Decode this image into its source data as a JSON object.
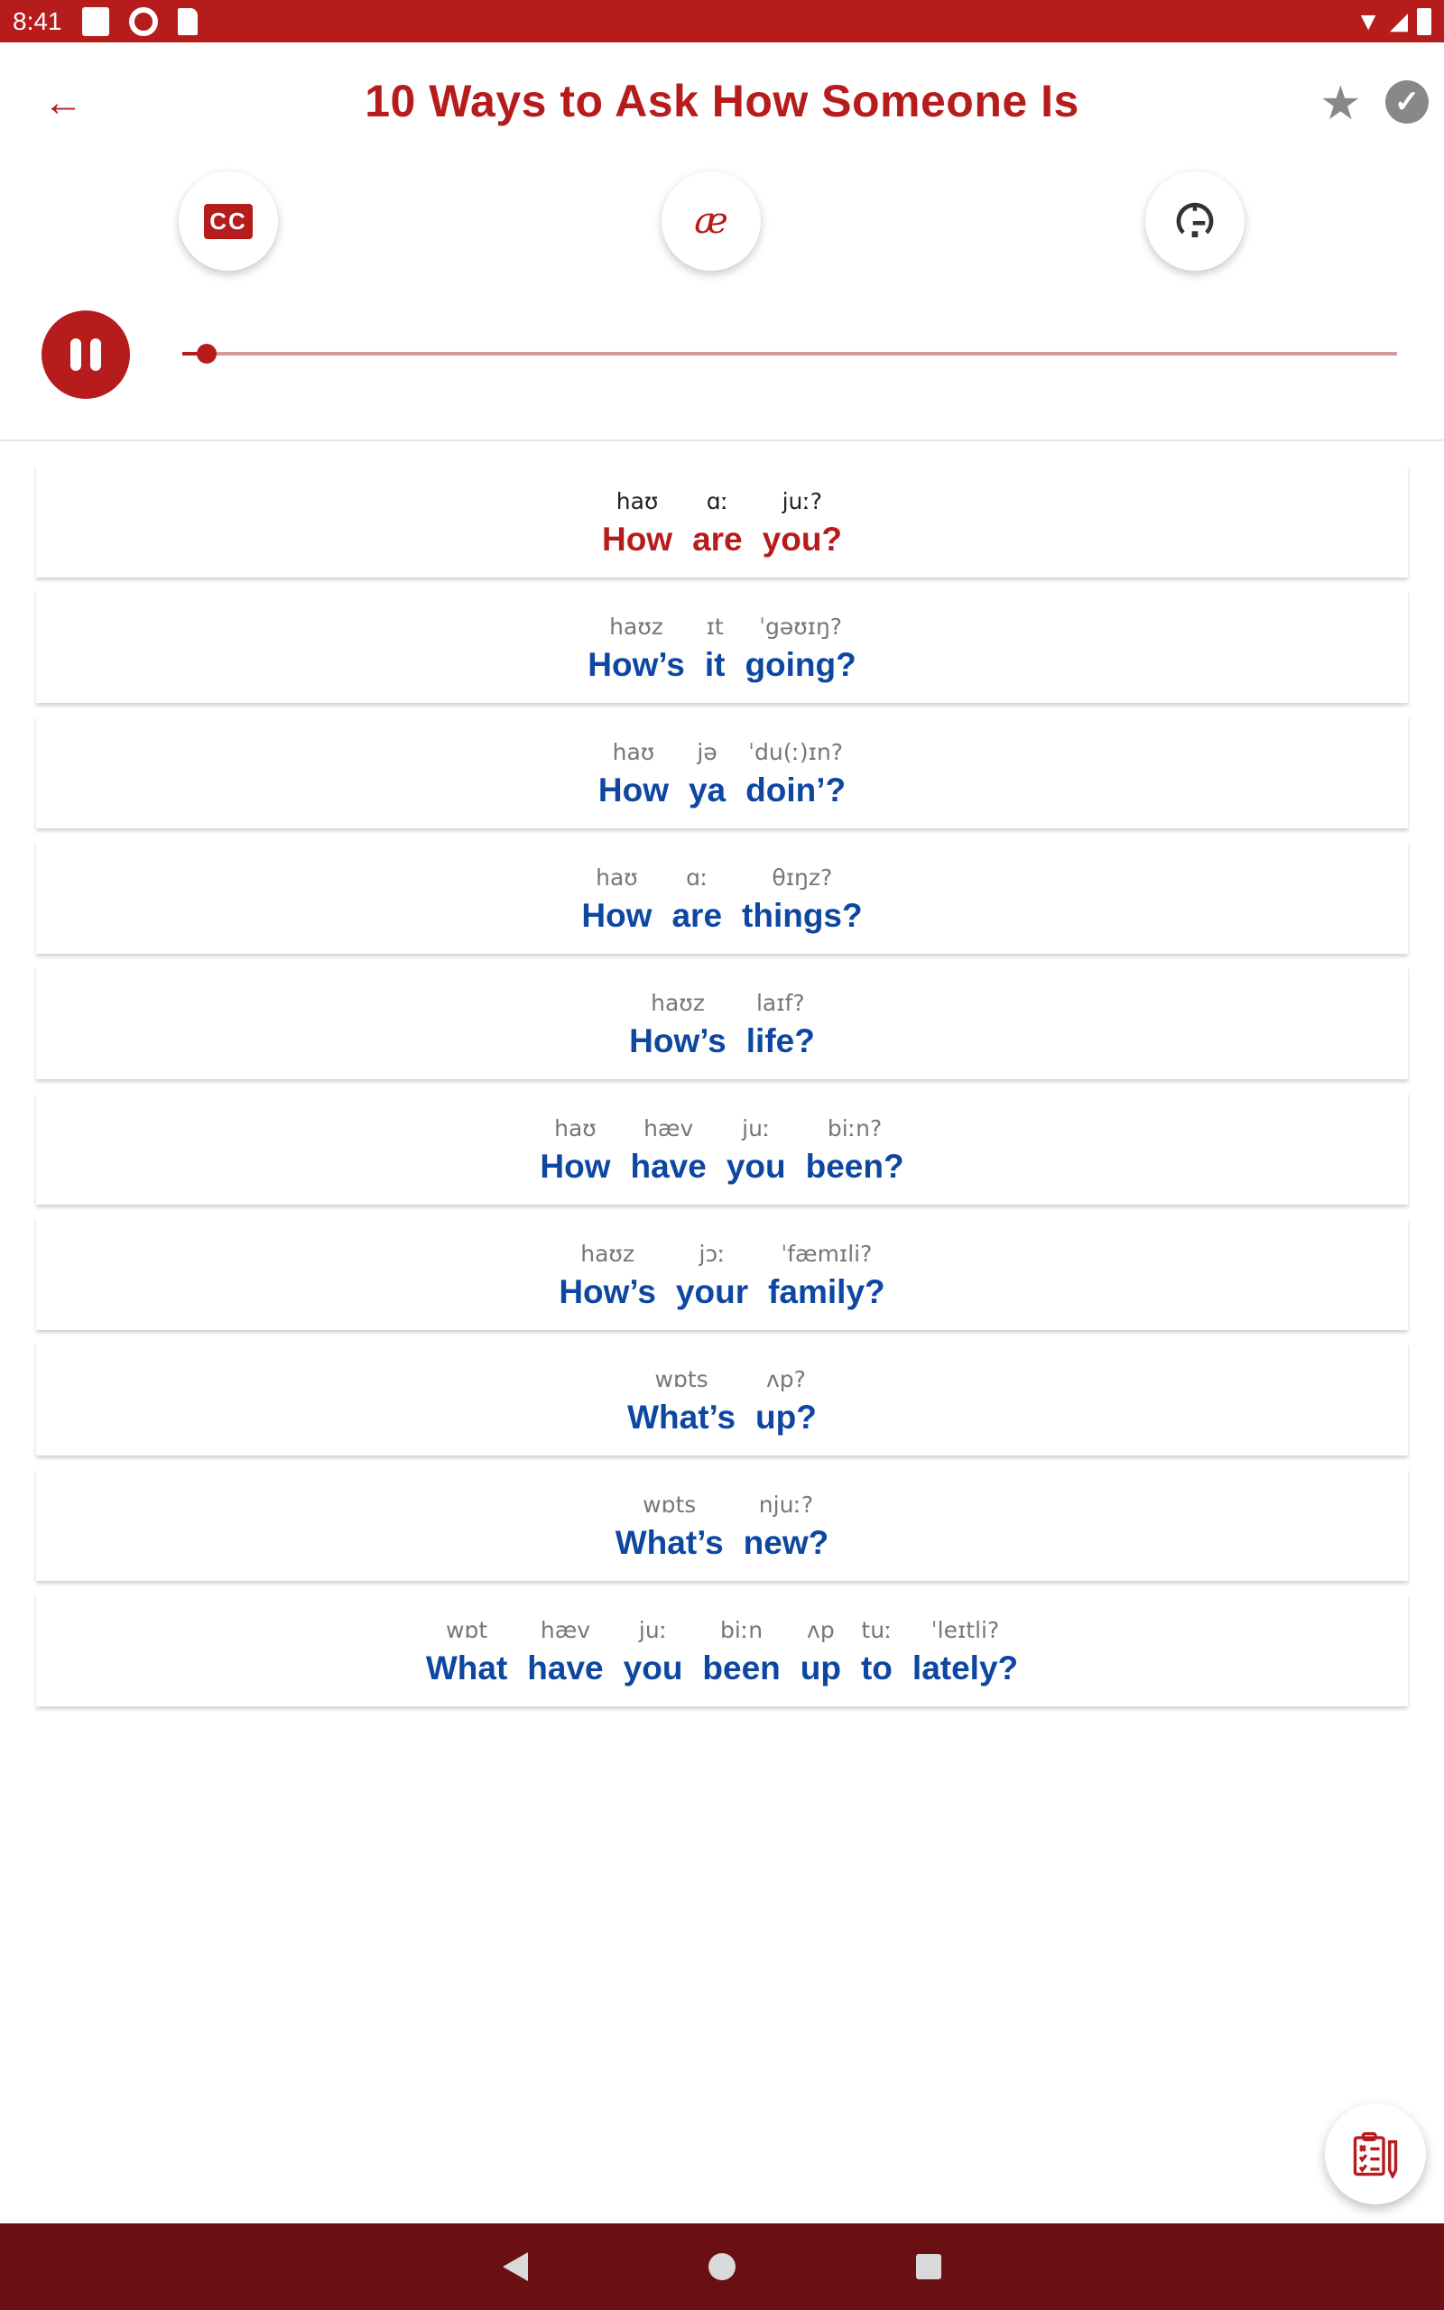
{
  "status_bar": {
    "time": "8:41"
  },
  "header": {
    "title": "10 Ways to Ask How Someone Is"
  },
  "toolbar": {
    "ipa_symbol": "æ",
    "cc_label": "CC"
  },
  "player": {
    "state": "playing",
    "progress": 0.02
  },
  "colors": {
    "brand": "#b71c1c",
    "phrase": "#0d47a1",
    "nav": "#6b1012"
  },
  "phrases": [
    {
      "active": true,
      "words": [
        [
          "haʊ",
          "How"
        ],
        [
          "ɑː",
          "are"
        ],
        [
          "juː?",
          "you?"
        ]
      ]
    },
    {
      "words": [
        [
          "haʊz",
          "How’s"
        ],
        [
          "ɪt",
          "it"
        ],
        [
          "ˈgəʊɪŋ?",
          "going?"
        ]
      ]
    },
    {
      "words": [
        [
          "haʊ",
          "How"
        ],
        [
          "jə",
          "ya"
        ],
        [
          "ˈdu(ː)ɪn?",
          "doin’?"
        ]
      ]
    },
    {
      "words": [
        [
          "haʊ",
          "How"
        ],
        [
          "ɑː",
          "are"
        ],
        [
          "θɪŋz?",
          "things?"
        ]
      ]
    },
    {
      "words": [
        [
          "haʊz",
          "How’s"
        ],
        [
          "laɪf?",
          "life?"
        ]
      ]
    },
    {
      "words": [
        [
          "haʊ",
          "How"
        ],
        [
          "hæv",
          "have"
        ],
        [
          "juː",
          "you"
        ],
        [
          "biːn?",
          "been?"
        ]
      ]
    },
    {
      "words": [
        [
          "haʊz",
          "How’s"
        ],
        [
          "jɔː",
          "your"
        ],
        [
          "ˈfæmɪli?",
          "family?"
        ]
      ]
    },
    {
      "words": [
        [
          "wɒts",
          "What’s"
        ],
        [
          "ʌp?",
          "up?"
        ]
      ]
    },
    {
      "words": [
        [
          "wɒts",
          "What’s"
        ],
        [
          "njuː?",
          "new?"
        ]
      ]
    },
    {
      "words": [
        [
          "wɒt",
          "What"
        ],
        [
          "hæv",
          "have"
        ],
        [
          "juː",
          "you"
        ],
        [
          "biːn",
          "been"
        ],
        [
          "ʌp",
          "up"
        ],
        [
          "tuː",
          "to"
        ],
        [
          "ˈleɪtli?",
          "lately?"
        ]
      ]
    }
  ]
}
